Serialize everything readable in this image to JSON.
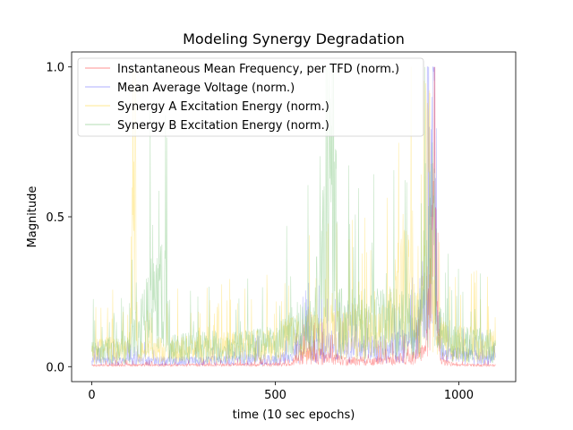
{
  "chart_data": {
    "type": "line",
    "title": "Modeling Synergy Degradation",
    "xlabel": "time (10 sec epochs)",
    "ylabel": "Magnitude",
    "xlim": [
      -55,
      1155
    ],
    "ylim": [
      -0.05,
      1.05
    ],
    "xticks": [
      0,
      500,
      1000
    ],
    "xtick_labels": [
      "0",
      "500",
      "1000"
    ],
    "yticks": [
      0.0,
      0.5,
      1.0
    ],
    "ytick_labels": [
      "0.0",
      "0.5",
      "1.0"
    ],
    "legend_position": "upper-left",
    "n_epochs": 1100,
    "series": [
      {
        "name": "Instantaneous Mean Frequency, per TFD (norm.)",
        "color": "#ff0000",
        "opacity": 0.35,
        "keypoints": [
          [
            0,
            0.005
          ],
          [
            100,
            0.005
          ],
          [
            300,
            0.006
          ],
          [
            540,
            0.008
          ],
          [
            560,
            0.03
          ],
          [
            600,
            0.04
          ],
          [
            650,
            0.03
          ],
          [
            700,
            0.02
          ],
          [
            800,
            0.02
          ],
          [
            880,
            0.03
          ],
          [
            910,
            0.05
          ],
          [
            920,
            0.2
          ],
          [
            925,
            0.44
          ],
          [
            930,
            0.3
          ],
          [
            935,
            1.0
          ],
          [
            940,
            0.2
          ],
          [
            950,
            0.02
          ],
          [
            1000,
            0.005
          ],
          [
            1100,
            0.005
          ]
        ]
      },
      {
        "name": "Mean Average Voltage (norm.)",
        "color": "#0000ff",
        "opacity": 0.25,
        "keypoints": [
          [
            0,
            0.02
          ],
          [
            100,
            0.02
          ],
          [
            300,
            0.02
          ],
          [
            540,
            0.03
          ],
          [
            560,
            0.07
          ],
          [
            620,
            0.08
          ],
          [
            700,
            0.06
          ],
          [
            800,
            0.06
          ],
          [
            880,
            0.08
          ],
          [
            900,
            0.27
          ],
          [
            910,
            0.15
          ],
          [
            920,
            0.8
          ],
          [
            925,
            0.5
          ],
          [
            932,
            1.0
          ],
          [
            940,
            0.15
          ],
          [
            960,
            0.04
          ],
          [
            1100,
            0.03
          ]
        ]
      },
      {
        "name": "Synergy A Excitation Energy (norm.)",
        "color": "#ffcc00",
        "opacity": 0.35,
        "keypoints": [
          [
            0,
            0.05
          ],
          [
            50,
            0.06
          ],
          [
            100,
            0.05
          ],
          [
            120,
            0.69
          ],
          [
            125,
            0.05
          ],
          [
            200,
            0.06
          ],
          [
            300,
            0.06
          ],
          [
            400,
            0.07
          ],
          [
            500,
            0.07
          ],
          [
            550,
            0.1
          ],
          [
            600,
            0.12
          ],
          [
            700,
            0.12
          ],
          [
            800,
            0.12
          ],
          [
            850,
            0.3
          ],
          [
            900,
            0.15
          ],
          [
            915,
            0.88
          ],
          [
            925,
            0.3
          ],
          [
            940,
            0.1
          ],
          [
            1000,
            0.08
          ],
          [
            1100,
            0.07
          ]
        ]
      },
      {
        "name": "Synergy B Excitation Energy (norm.)",
        "color": "#66bb66",
        "opacity": 0.4,
        "keypoints": [
          [
            0,
            0.05
          ],
          [
            100,
            0.06
          ],
          [
            205,
            0.31
          ],
          [
            210,
            0.06
          ],
          [
            300,
            0.07
          ],
          [
            400,
            0.07
          ],
          [
            500,
            0.08
          ],
          [
            550,
            0.12
          ],
          [
            600,
            0.14
          ],
          [
            665,
            0.66
          ],
          [
            670,
            0.15
          ],
          [
            750,
            0.15
          ],
          [
            850,
            0.15
          ],
          [
            900,
            0.15
          ],
          [
            930,
            0.5
          ],
          [
            940,
            0.12
          ],
          [
            1000,
            0.08
          ],
          [
            1100,
            0.07
          ]
        ]
      }
    ]
  }
}
